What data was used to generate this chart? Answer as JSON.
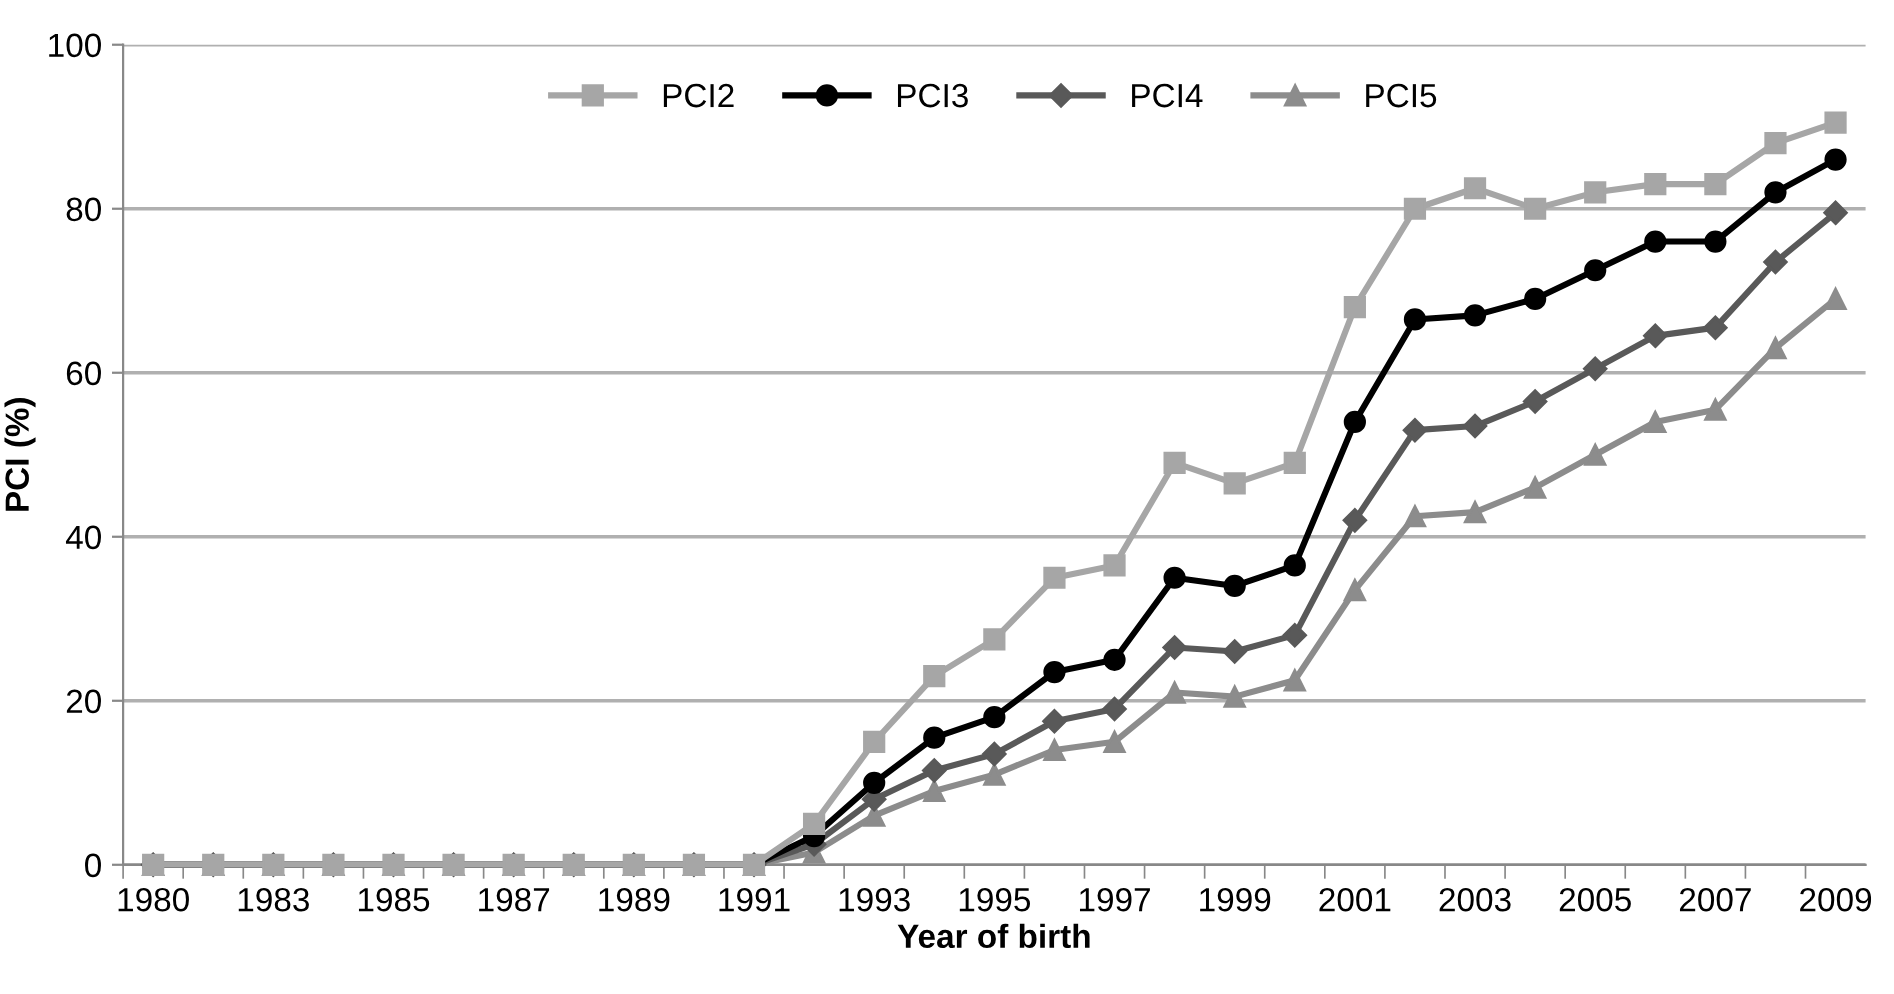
{
  "chart_data": {
    "type": "line",
    "categories": [
      "1980",
      null,
      "1983",
      null,
      "1985",
      null,
      "1987",
      null,
      "1989",
      null,
      "1991",
      null,
      "1993",
      null,
      "1995",
      null,
      "1997",
      null,
      "1999",
      null,
      "2001",
      null,
      "2003",
      null,
      "2005",
      null,
      "2007",
      null,
      "2009"
    ],
    "xlabel": "Year of birth",
    "ylabel": "PCI (%)",
    "ylim": [
      0,
      100
    ],
    "yticks": [
      0,
      20,
      40,
      60,
      80,
      100
    ],
    "grid": "y",
    "legend": "top",
    "series": [
      {
        "name": "PCI2",
        "color": "#a6a6a6",
        "marker": "square",
        "values": [
          0,
          0,
          0,
          0,
          0,
          0,
          0,
          0,
          0,
          0,
          0,
          5,
          15,
          23,
          27.5,
          35,
          36.5,
          49,
          46.5,
          49,
          68,
          80,
          82.5,
          80,
          82,
          83,
          83,
          88,
          90.5
        ]
      },
      {
        "name": "PCI3",
        "color": "#000000",
        "marker": "circle",
        "values": [
          0,
          0,
          0,
          0,
          0,
          0,
          0,
          0,
          0,
          0,
          0,
          3.5,
          10,
          15.5,
          18,
          23.5,
          25,
          35,
          34,
          36.5,
          54,
          66.5,
          67,
          69,
          72.5,
          76,
          76,
          82,
          86
        ]
      },
      {
        "name": "PCI4",
        "color": "#595959",
        "marker": "diamond",
        "values": [
          0,
          0,
          0,
          0,
          0,
          0,
          0,
          0,
          0,
          0,
          0,
          2.5,
          8,
          11.5,
          13.5,
          17.5,
          19,
          26.5,
          26,
          28,
          42,
          53,
          53.5,
          56.5,
          60.5,
          64.5,
          65.5,
          73.5,
          79.5
        ]
      },
      {
        "name": "PCI5",
        "color": "#8c8c8c",
        "marker": "triangle",
        "values": [
          0,
          0,
          0,
          0,
          0,
          0,
          0,
          0,
          0,
          0,
          0,
          1.5,
          6,
          9,
          11,
          14,
          15,
          21,
          20.5,
          22.5,
          33.5,
          42.5,
          43,
          46,
          50,
          54,
          55.5,
          63,
          69
        ]
      }
    ]
  }
}
